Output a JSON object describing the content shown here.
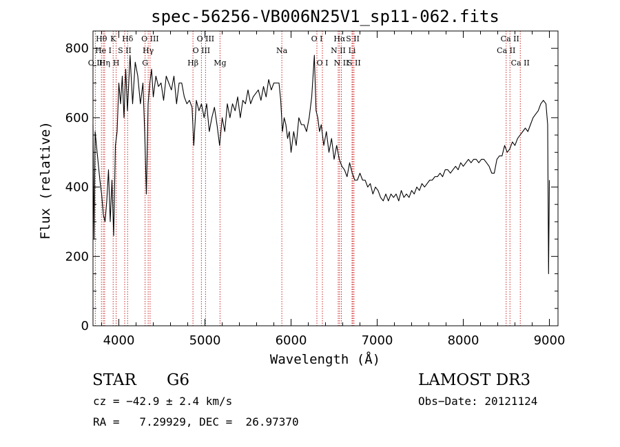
{
  "chart_data": {
    "type": "line",
    "title": "spec-56256-VB006N25V1_sp11-062.fits",
    "xlabel": "Wavelength (Å)",
    "ylabel": "Flux (relative)",
    "xlim": [
      3700,
      9100
    ],
    "ylim": [
      0,
      850
    ],
    "xticks": [
      4000,
      5000,
      6000,
      7000,
      8000,
      9000
    ],
    "yticks": [
      0,
      200,
      400,
      600,
      800
    ],
    "grid": false,
    "series": [
      {
        "name": "flux",
        "x": [
          3700,
          3712,
          3725,
          3740,
          3760,
          3780,
          3800,
          3820,
          3840,
          3860,
          3880,
          3900,
          3920,
          3940,
          3960,
          3980,
          4000,
          4020,
          4040,
          4060,
          4080,
          4100,
          4130,
          4160,
          4190,
          4220,
          4250,
          4280,
          4300,
          4320,
          4340,
          4360,
          4380,
          4400,
          4430,
          4460,
          4490,
          4520,
          4550,
          4580,
          4610,
          4640,
          4670,
          4700,
          4730,
          4760,
          4790,
          4820,
          4850,
          4870,
          4900,
          4930,
          4960,
          4990,
          5020,
          5050,
          5080,
          5110,
          5140,
          5170,
          5200,
          5230,
          5260,
          5290,
          5320,
          5350,
          5380,
          5410,
          5440,
          5470,
          5500,
          5530,
          5560,
          5590,
          5620,
          5650,
          5680,
          5710,
          5740,
          5770,
          5800,
          5830,
          5860,
          5880,
          5900,
          5920,
          5940,
          5960,
          5980,
          6000,
          6030,
          6060,
          6090,
          6120,
          6150,
          6180,
          6210,
          6240,
          6270,
          6290,
          6310,
          6330,
          6350,
          6380,
          6410,
          6440,
          6470,
          6500,
          6530,
          6560,
          6590,
          6620,
          6650,
          6680,
          6710,
          6740,
          6770,
          6800,
          6830,
          6860,
          6890,
          6920,
          6950,
          6980,
          7010,
          7040,
          7070,
          7100,
          7130,
          7160,
          7190,
          7220,
          7250,
          7280,
          7310,
          7340,
          7370,
          7400,
          7430,
          7460,
          7490,
          7520,
          7550,
          7580,
          7610,
          7640,
          7670,
          7700,
          7730,
          7760,
          7790,
          7820,
          7850,
          7880,
          7910,
          7940,
          7970,
          8000,
          8030,
          8060,
          8090,
          8120,
          8150,
          8180,
          8210,
          8240,
          8270,
          8300,
          8330,
          8360,
          8390,
          8420,
          8450,
          8480,
          8510,
          8540,
          8570,
          8600,
          8630,
          8660,
          8690,
          8720,
          8750,
          8780,
          8810,
          8840,
          8870,
          8900,
          8930,
          8960,
          8980,
          8990,
          9000
        ],
        "y": [
          580,
          250,
          560,
          520,
          470,
          420,
          380,
          320,
          300,
          360,
          450,
          300,
          420,
          260,
          520,
          560,
          700,
          640,
          720,
          600,
          740,
          620,
          780,
          640,
          760,
          720,
          640,
          700,
          560,
          380,
          640,
          700,
          740,
          660,
          720,
          690,
          700,
          650,
          720,
          700,
          680,
          720,
          640,
          700,
          700,
          660,
          640,
          650,
          630,
          520,
          650,
          620,
          640,
          600,
          640,
          560,
          600,
          630,
          580,
          520,
          600,
          560,
          640,
          600,
          640,
          620,
          660,
          600,
          650,
          640,
          680,
          640,
          660,
          670,
          680,
          650,
          690,
          660,
          710,
          680,
          700,
          700,
          700,
          650,
          560,
          600,
          580,
          540,
          560,
          500,
          560,
          520,
          600,
          580,
          580,
          560,
          600,
          660,
          780,
          620,
          600,
          560,
          580,
          520,
          560,
          500,
          540,
          480,
          520,
          480,
          460,
          450,
          430,
          470,
          440,
          420,
          420,
          440,
          420,
          420,
          400,
          410,
          380,
          400,
          390,
          370,
          360,
          380,
          360,
          380,
          370,
          380,
          360,
          390,
          370,
          380,
          370,
          390,
          380,
          400,
          390,
          410,
          400,
          410,
          420,
          420,
          430,
          430,
          440,
          430,
          450,
          450,
          440,
          450,
          460,
          450,
          470,
          460,
          470,
          480,
          470,
          480,
          480,
          470,
          480,
          480,
          470,
          460,
          440,
          440,
          480,
          490,
          490,
          520,
          500,
          510,
          530,
          520,
          540,
          550,
          560,
          570,
          560,
          580,
          600,
          610,
          620,
          640,
          650,
          640,
          580,
          150,
          420
        ]
      }
    ],
    "line_labels": [
      {
        "label": "O II",
        "x": 3727,
        "row": 3
      },
      {
        "label": "Hθ",
        "x": 3798,
        "row": 1
      },
      {
        "label": "He I",
        "x": 3820,
        "row": 2
      },
      {
        "label": "Hη",
        "x": 3835,
        "row": 3
      },
      {
        "label": "K",
        "x": 3934,
        "row": 1
      },
      {
        "label": "S II",
        "x": 4068,
        "row": 2
      },
      {
        "label": "H",
        "x": 3969,
        "row": 3
      },
      {
        "label": "Hδ",
        "x": 4102,
        "row": 1
      },
      {
        "label": "O III",
        "x": 4363,
        "row": 1
      },
      {
        "label": "Hγ",
        "x": 4341,
        "row": 2
      },
      {
        "label": "G",
        "x": 4305,
        "row": 3
      },
      {
        "label": "Hβ",
        "x": 4861,
        "row": 3
      },
      {
        "label": "O III",
        "x": 5007,
        "row": 1
      },
      {
        "label": "O III",
        "x": 4959,
        "row": 2
      },
      {
        "label": "Mg",
        "x": 5175,
        "row": 3
      },
      {
        "label": "Na",
        "x": 5893,
        "row": 2
      },
      {
        "label": "O I",
        "x": 6300,
        "row": 1
      },
      {
        "label": "O I",
        "x": 6364,
        "row": 3
      },
      {
        "label": "Hα",
        "x": 6563,
        "row": 1
      },
      {
        "label": "N II",
        "x": 6548,
        "row": 2
      },
      {
        "label": "N II",
        "x": 6584,
        "row": 3
      },
      {
        "label": "S II",
        "x": 6717,
        "row": 1
      },
      {
        "label": "Li",
        "x": 6708,
        "row": 2
      },
      {
        "label": "S II",
        "x": 6731,
        "row": 3
      },
      {
        "label": "Ca II",
        "x": 8542,
        "row": 1
      },
      {
        "label": "Ca II",
        "x": 8498,
        "row": 2
      },
      {
        "label": "Ca II",
        "x": 8662,
        "row": 3
      }
    ]
  },
  "info": {
    "class_label": "STAR",
    "subclass": "G6",
    "survey": "LAMOST DR3",
    "redshift_text": "cz = −42.9 ± 2.4 km/s",
    "obs_date_text": "Obs−Date: 20121124",
    "coords_text": "RA =   7.29929, DEC =  26.97370"
  },
  "colors": {
    "spectrum": "#000000",
    "line_marker": "#cc2222",
    "axis": "#000000"
  }
}
